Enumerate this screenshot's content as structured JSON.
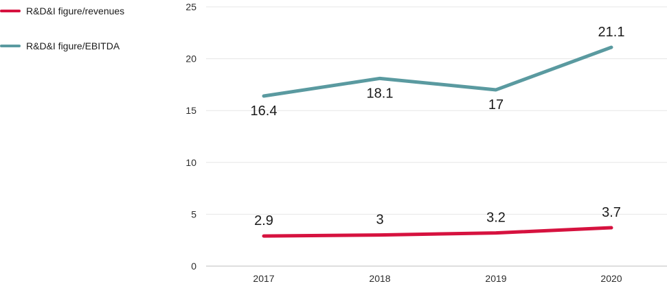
{
  "chart_data": {
    "type": "line",
    "categories": [
      "2017",
      "2018",
      "2019",
      "2020"
    ],
    "series": [
      {
        "name": "R&D&I figure/revenues",
        "values": [
          2.9,
          3,
          3.2,
          3.7
        ],
        "labels": [
          "2.9",
          "3",
          "3.2",
          "3.7"
        ],
        "color": "#d6123f"
      },
      {
        "name": "R&D&I figure/EBITDA",
        "values": [
          16.4,
          18.1,
          17,
          21.1
        ],
        "labels": [
          "16.4",
          "18.1",
          "17",
          "21.1"
        ],
        "color": "#5a9aa0"
      }
    ],
    "y_ticks": [
      "0",
      "5",
      "10",
      "15",
      "20",
      "25"
    ],
    "ylim": [
      0,
      25
    ],
    "grid": true,
    "legend_position": "top-left",
    "gridline_color": "#e6e6e6",
    "axis_color": "#bdbdbd"
  }
}
